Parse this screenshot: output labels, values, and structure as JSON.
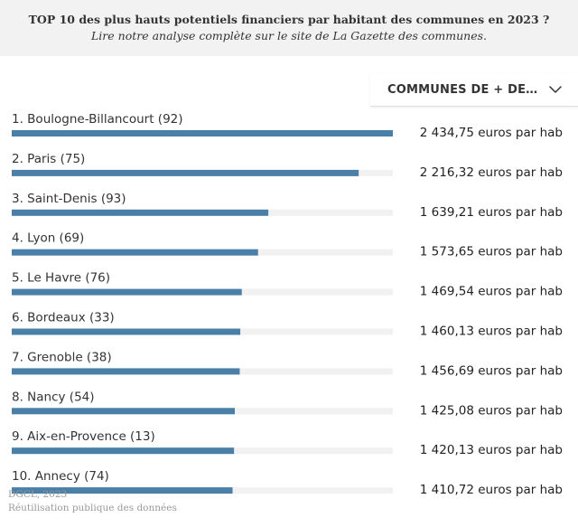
{
  "header": {
    "title": "TOP 10 des plus hauts potentiels financiers par habitant des communes en 2023 ?",
    "subtitle": "Lire notre analyse complète sur le site de La Gazette des communes."
  },
  "filter": {
    "selected_label": "COMMUNES DE + DE 1...",
    "icon": "chevron-down-icon"
  },
  "chart_data": {
    "type": "bar",
    "orientation": "horizontal",
    "categories": [
      "1. Boulogne-Billancourt (92)",
      "2. Paris (75)",
      "3. Saint-Denis (93)",
      "4. Lyon (69)",
      "5. Le Havre (76)",
      "6. Bordeaux (33)",
      "7. Grenoble (38)",
      "8. Nancy (54)",
      "9. Aix-en-Provence (13)",
      "10. Annecy (74)"
    ],
    "values": [
      2434.75,
      2216.32,
      1639.21,
      1573.65,
      1469.54,
      1460.13,
      1456.69,
      1425.08,
      1420.13,
      1410.72
    ],
    "value_labels": [
      "2 434,75 euros par hab",
      "2 216,32 euros par hab",
      "1 639,21 euros par hab",
      "1 573,65 euros par hab",
      "1 469,54 euros par hab",
      "1 460,13 euros par hab",
      "1 456,69 euros par hab",
      "1 425,08 euros par hab",
      "1 420,13 euros par hab",
      "1 410,72 euros par hab"
    ],
    "xlim": [
      0,
      2434.75
    ],
    "bar_color": "#4a7fa8",
    "track_color": "#f1f1f1",
    "grid": false,
    "legend": "none"
  },
  "source": {
    "line1": "DGCL, 2023",
    "line2": "Réutilisation publique des données"
  }
}
